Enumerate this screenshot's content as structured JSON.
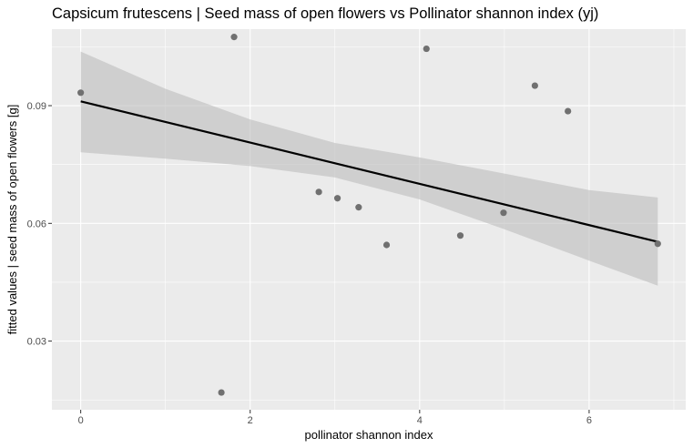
{
  "chart_data": {
    "type": "scatter",
    "title": "Capsicum frutescens | Seed mass of open flowers vs Pollinator shannon index (yj)",
    "xlabel": "pollinator shannon index",
    "ylabel": "fitted values | seed mass of open flowers [g]",
    "xlim": [
      -0.34,
      7.14
    ],
    "ylim": [
      0.0125,
      0.1095
    ],
    "x_ticks": [
      0,
      2,
      4,
      6
    ],
    "x_tick_labels": [
      "0",
      "2",
      "4",
      "6"
    ],
    "y_ticks": [
      0.03,
      0.06,
      0.09
    ],
    "y_tick_labels": [
      "0.03",
      "0.06",
      "0.09"
    ],
    "grid": true,
    "legend": "none",
    "points": {
      "x": [
        0.0,
        1.66,
        1.81,
        2.81,
        3.03,
        3.28,
        3.61,
        4.08,
        4.48,
        4.99,
        5.36,
        5.75,
        6.81
      ],
      "y": [
        0.0933,
        0.0169,
        0.1075,
        0.068,
        0.0664,
        0.0641,
        0.0545,
        0.1045,
        0.0569,
        0.0627,
        0.0951,
        0.0886,
        0.0548
      ]
    },
    "fit_line": {
      "x": [
        0.0,
        6.81
      ],
      "y": [
        0.0911,
        0.0553
      ]
    },
    "confidence_band": {
      "x": [
        0.0,
        1.0,
        2.0,
        3.0,
        4.0,
        5.0,
        6.0,
        6.81
      ],
      "upper": [
        0.1038,
        0.0943,
        0.0865,
        0.0805,
        0.0768,
        0.0727,
        0.0685,
        0.0666
      ],
      "lower": [
        0.0781,
        0.0765,
        0.0746,
        0.0717,
        0.0661,
        0.0585,
        0.0505,
        0.0441
      ]
    },
    "colors": {
      "panel": "#ebebeb",
      "grid": "#ffffff",
      "points": "#707070",
      "line": "#000000",
      "band": "#bdbdbd"
    }
  }
}
